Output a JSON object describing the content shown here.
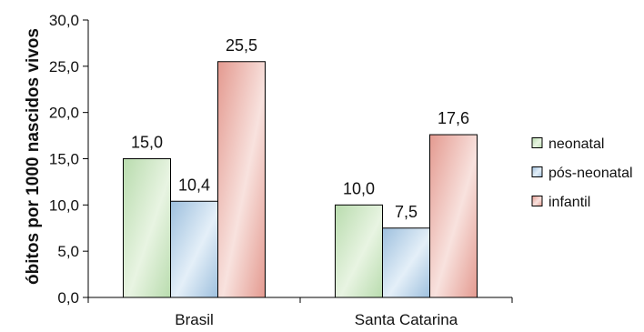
{
  "chart_data": {
    "type": "bar",
    "categories": [
      "Brasil",
      "Santa Catarina"
    ],
    "series": [
      {
        "name": "neonatal",
        "values": [
          15.0,
          10.0
        ],
        "labels": [
          "15,0",
          "10,0"
        ],
        "color": "#b9dcae",
        "edge": "#e8f4e2"
      },
      {
        "name": "pós-neonatal",
        "values": [
          10.4,
          7.5
        ],
        "labels": [
          "10,4",
          "7,5"
        ],
        "color": "#9ec0de",
        "edge": "#e4eff8"
      },
      {
        "name": "infantil",
        "values": [
          25.5,
          17.6
        ],
        "labels": [
          "25,5",
          "17,6"
        ],
        "color": "#e49a90",
        "edge": "#f8e2de"
      }
    ],
    "ylabel": "óbitos por 1000 nascidos vivos",
    "xlabel": "",
    "ylim": [
      0,
      30
    ],
    "yticks": [
      0,
      5,
      10,
      15,
      20,
      25,
      30
    ],
    "ytick_labels": [
      "0,0",
      "5,0",
      "10,0",
      "15,0",
      "20,0",
      "25,0",
      "30,0"
    ],
    "grid": false,
    "legend_position": "right"
  }
}
